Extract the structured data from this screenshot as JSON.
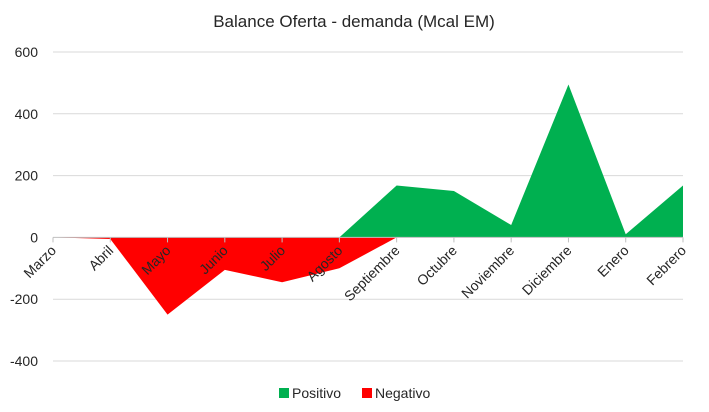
{
  "chart_data": {
    "type": "area",
    "title": "Balance Oferta - demanda (Mcal EM)",
    "xlabel": "",
    "ylabel": "",
    "ylim": [
      -400,
      600
    ],
    "yticks": [
      600,
      400,
      200,
      0,
      -200,
      -400
    ],
    "categories": [
      "Marzo",
      "Abril",
      "Mayo",
      "Junio",
      "Julio",
      "Agosto",
      "Septiembre",
      "Octubre",
      "Noviembre",
      "Diciembre",
      "Enero",
      "Febrero"
    ],
    "series": [
      {
        "name": "Positivo",
        "color": "#00b050",
        "values": [
          0,
          0,
          0,
          0,
          0,
          0,
          168,
          150,
          40,
          495,
          10,
          168
        ]
      },
      {
        "name": "Negativo",
        "color": "#ff0000",
        "values": [
          0,
          -5,
          -250,
          -105,
          -145,
          -100,
          0,
          0,
          0,
          0,
          0,
          0
        ]
      }
    ],
    "legend": {
      "position": "bottom"
    },
    "grid": true
  }
}
